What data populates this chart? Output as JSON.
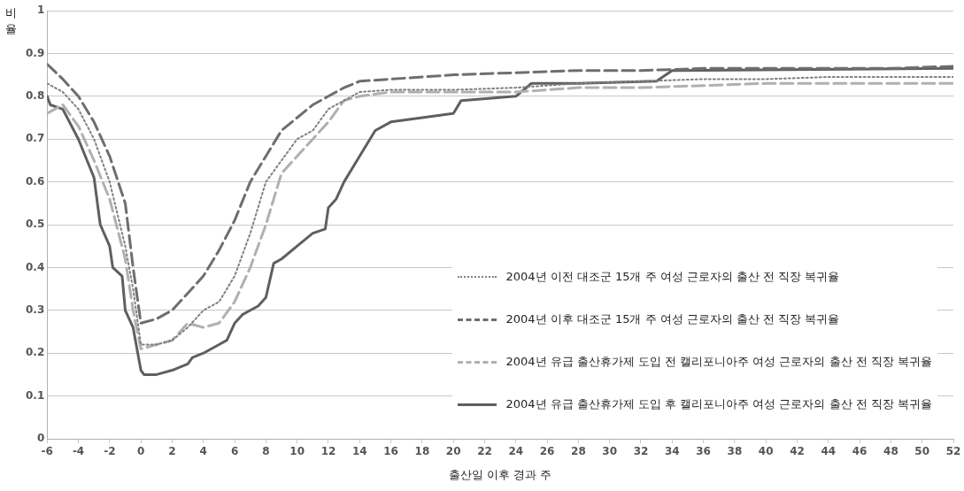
{
  "chart_data": {
    "type": "line",
    "xlabel": "출산일 이후 경과 주",
    "ylabel": "비율",
    "xlim": [
      -6,
      52
    ],
    "xticks": [
      -6,
      -4,
      -2,
      0,
      2,
      4,
      6,
      8,
      10,
      12,
      14,
      16,
      18,
      20,
      22,
      24,
      26,
      28,
      30,
      32,
      34,
      36,
      38,
      40,
      42,
      44,
      46,
      48,
      50,
      52
    ],
    "ylim": [
      0,
      1
    ],
    "yticks": [
      0,
      0.1,
      0.2,
      0.3,
      0.4,
      0.5,
      0.6,
      0.7,
      0.8,
      0.9,
      1
    ],
    "grid": "y",
    "legend": "bottom right",
    "marker": "none",
    "series": [
      {
        "name": "2004년 이전 대조군 15개 주 여성 근로자의 출산 전 직장 복귀율",
        "color": "#808080",
        "line_style": "dotted",
        "x": [
          -6,
          -5,
          -4,
          -3,
          -2,
          -1,
          -0.5,
          0,
          1,
          2,
          3,
          4,
          5,
          6,
          7,
          8,
          9,
          10,
          11,
          12,
          13,
          14,
          16,
          20,
          24,
          28,
          32,
          36,
          40,
          44,
          48,
          52
        ],
        "values": [
          0.83,
          0.81,
          0.77,
          0.7,
          0.6,
          0.45,
          0.35,
          0.22,
          0.22,
          0.23,
          0.26,
          0.3,
          0.32,
          0.38,
          0.48,
          0.6,
          0.65,
          0.7,
          0.72,
          0.77,
          0.79,
          0.81,
          0.815,
          0.815,
          0.82,
          0.83,
          0.835,
          0.84,
          0.84,
          0.845,
          0.845,
          0.845
        ]
      },
      {
        "name": "2004년 이후 대조군 15개 주 여성 근로자의 출산 전 직장 복귀율",
        "color": "#6e6e6e",
        "line_style": "dashed",
        "x": [
          -6,
          -5,
          -4,
          -3,
          -2,
          -1,
          -0.5,
          0,
          1,
          2,
          3,
          4,
          5,
          6,
          7,
          8,
          9,
          10,
          11,
          12,
          13,
          14,
          16,
          20,
          24,
          28,
          32,
          36,
          40,
          44,
          48,
          52
        ],
        "values": [
          0.875,
          0.84,
          0.8,
          0.74,
          0.66,
          0.55,
          0.4,
          0.27,
          0.28,
          0.3,
          0.34,
          0.38,
          0.44,
          0.51,
          0.6,
          0.66,
          0.72,
          0.75,
          0.78,
          0.8,
          0.82,
          0.835,
          0.84,
          0.85,
          0.855,
          0.86,
          0.86,
          0.865,
          0.865,
          0.865,
          0.865,
          0.87
        ]
      },
      {
        "name": "2004년 유급 출산휴가제 도입 전 캘리포니아주 여성 근로자의 출산 전 직장 복귀율",
        "color": "#b0b0b0",
        "line_style": "dashed",
        "x": [
          -6,
          -5,
          -4,
          -3,
          -2,
          -1,
          -0.5,
          0,
          1,
          2,
          3,
          4,
          5,
          6,
          7,
          8,
          9,
          10,
          11,
          12,
          13,
          14,
          16,
          20,
          24,
          28,
          32,
          36,
          40,
          44,
          48,
          52
        ],
        "values": [
          0.76,
          0.78,
          0.73,
          0.65,
          0.56,
          0.42,
          0.3,
          0.21,
          0.22,
          0.23,
          0.27,
          0.26,
          0.27,
          0.32,
          0.4,
          0.5,
          0.62,
          0.66,
          0.7,
          0.74,
          0.79,
          0.8,
          0.81,
          0.81,
          0.81,
          0.82,
          0.82,
          0.825,
          0.83,
          0.83,
          0.83,
          0.83
        ]
      },
      {
        "name": "2004년 유급 출산휴가제 도입 후 캘리포니아주 여성 근로자의 출산 전 직장 복귀율",
        "color": "#5f5f5f",
        "line_style": "solid",
        "x": [
          -6,
          -5.8,
          -5,
          -4,
          -3,
          -2.6,
          -2,
          -1.8,
          -1.2,
          -1,
          -0.5,
          0,
          0.2,
          1,
          2,
          3,
          3.3,
          4,
          5,
          5.5,
          6,
          6.5,
          7,
          7.5,
          8,
          8.5,
          9,
          10,
          11,
          11.8,
          12,
          12.5,
          13,
          14,
          15,
          16,
          18,
          20,
          20.5,
          24,
          25,
          28,
          33,
          34,
          52
        ],
        "values": [
          0.8,
          0.78,
          0.77,
          0.7,
          0.61,
          0.5,
          0.45,
          0.4,
          0.38,
          0.3,
          0.26,
          0.16,
          0.15,
          0.15,
          0.16,
          0.175,
          0.19,
          0.2,
          0.22,
          0.23,
          0.27,
          0.29,
          0.3,
          0.31,
          0.33,
          0.41,
          0.42,
          0.45,
          0.48,
          0.49,
          0.54,
          0.56,
          0.6,
          0.66,
          0.72,
          0.74,
          0.75,
          0.76,
          0.79,
          0.8,
          0.83,
          0.83,
          0.835,
          0.86,
          0.865
        ]
      }
    ]
  }
}
